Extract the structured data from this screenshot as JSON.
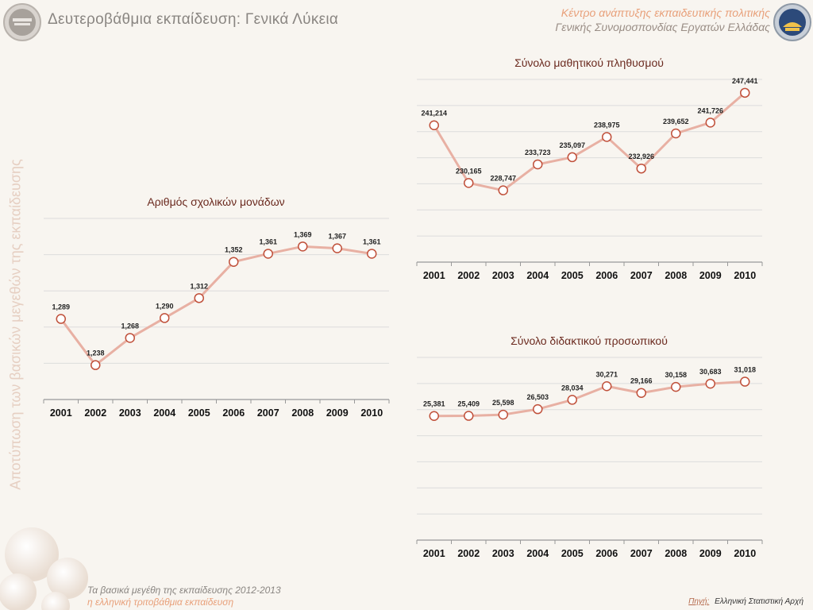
{
  "header": {
    "title": "Δευτεροβάθμια εκπαίδευση: Γενικά Λύκεια",
    "org_line1": "Κέντρο ανάπτυξης εκπαιδευτικής πολιτικής",
    "org_line2": "Γενικής Συνομοσπονδίας Εργατών Ελλάδας"
  },
  "side_title": "Αποτύπωση των βασικών μεγεθών της εκπαίδευσης",
  "footer": {
    "line1": "Τα βασικά μεγέθη της εκπαίδευσης 2012-2013",
    "line2": "η ελληνική τριτοβάθμια εκπαίδευση",
    "source_label": "Πηγή:",
    "source_value": "Ελληνική Στατιστική Αρχή"
  },
  "colors": {
    "line": "#e8b0a3",
    "marker_stroke": "#c0503a",
    "marker_fill": "#ffffff",
    "grid": "#dcdcdc",
    "axis": "#999999"
  },
  "chart_data": [
    {
      "type": "line",
      "title": "Αριθμός σχολικών μονάδων",
      "x": [
        "2001",
        "2002",
        "2003",
        "2004",
        "2005",
        "2006",
        "2007",
        "2008",
        "2009",
        "2010"
      ],
      "values": [
        1289,
        1238,
        1268,
        1290,
        1312,
        1352,
        1361,
        1369,
        1367,
        1361
      ],
      "labels": [
        "1,289",
        "1,238",
        "1,268",
        "1,290",
        "1,312",
        "1,352",
        "1,361",
        "1,369",
        "1,367",
        "1,361"
      ],
      "ylim": [
        1200,
        1400
      ],
      "grid": true
    },
    {
      "type": "line",
      "title": "Σύνολο μαθητικού πληθυσμού",
      "x": [
        "2001",
        "2002",
        "2003",
        "2004",
        "2005",
        "2006",
        "2007",
        "2008",
        "2009",
        "2010"
      ],
      "values": [
        241214,
        230165,
        228747,
        233723,
        235097,
        238975,
        232926,
        239652,
        241726,
        247441
      ],
      "labels": [
        "241,214",
        "230,165",
        "228,747",
        "233,723",
        "235,097",
        "238,975",
        "232,926",
        "239,652",
        "241,726",
        "247,441"
      ],
      "ylim": [
        215000,
        250000
      ],
      "grid": true
    },
    {
      "type": "line",
      "title": "Σύνολο διδακτικού προσωπικού",
      "x": [
        "2001",
        "2002",
        "2003",
        "2004",
        "2005",
        "2006",
        "2007",
        "2008",
        "2009",
        "2010"
      ],
      "values": [
        25381,
        25409,
        25598,
        26503,
        28034,
        30271,
        29166,
        30158,
        30683,
        31018
      ],
      "labels": [
        "25,381",
        "25,409",
        "25,598",
        "26,503",
        "28,034",
        "30,271",
        "29,166",
        "30,158",
        "30,683",
        "31,018"
      ],
      "ylim": [
        5000,
        35000
      ],
      "grid": true
    }
  ]
}
